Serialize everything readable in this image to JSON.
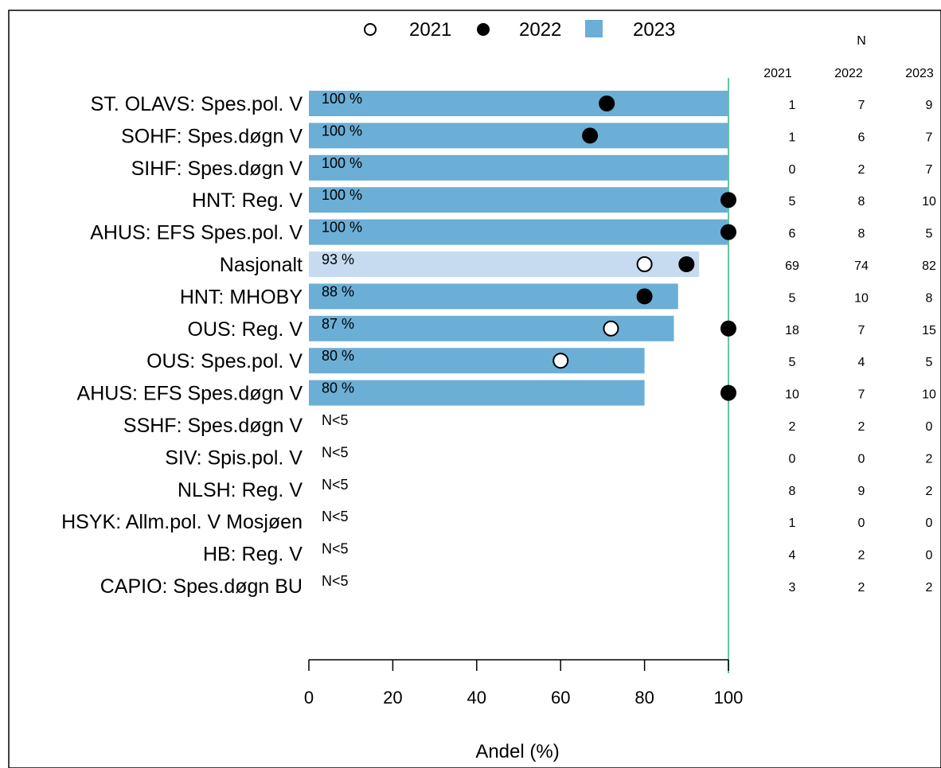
{
  "chart_data": {
    "type": "bar",
    "orientation": "horizontal",
    "xlabel": "Andel (%)",
    "xlim": [
      0,
      100
    ],
    "xticks": [
      0,
      20,
      40,
      60,
      80,
      100
    ],
    "reference_line": 100,
    "legend": {
      "placement": "top",
      "entries": [
        {
          "label": "2021",
          "marker": "open-circle"
        },
        {
          "label": "2022",
          "marker": "filled-circle"
        },
        {
          "label": "2023",
          "marker": "bar"
        }
      ]
    },
    "n_table": {
      "title": "N",
      "columns": [
        "2021",
        "2022",
        "2023"
      ]
    },
    "rows": [
      {
        "label": "ST. OLAVS: Spes.pol. V",
        "value_2023": 100,
        "label_2023": "100 %",
        "value_2022": 71,
        "value_2021": null,
        "n": [
          1,
          7,
          9
        ],
        "highlight": false
      },
      {
        "label": "SOHF: Spes.døgn V",
        "value_2023": 100,
        "label_2023": "100 %",
        "value_2022": 67,
        "value_2021": null,
        "n": [
          1,
          6,
          7
        ],
        "highlight": false
      },
      {
        "label": "SIHF: Spes.døgn V",
        "value_2023": 100,
        "label_2023": "100 %",
        "value_2022": null,
        "value_2021": null,
        "n": [
          0,
          2,
          7
        ],
        "highlight": false
      },
      {
        "label": "HNT: Reg. V",
        "value_2023": 100,
        "label_2023": "100 %",
        "value_2022": 100,
        "value_2021": null,
        "n": [
          5,
          8,
          10
        ],
        "highlight": false
      },
      {
        "label": "AHUS: EFS Spes.pol. V",
        "value_2023": 100,
        "label_2023": "100 %",
        "value_2022": 100,
        "value_2021": null,
        "n": [
          6,
          8,
          5
        ],
        "highlight": false
      },
      {
        "label": "Nasjonalt",
        "value_2023": 93,
        "label_2023": "93 %",
        "value_2022": 90,
        "value_2021": 80,
        "n": [
          69,
          74,
          82
        ],
        "highlight": true
      },
      {
        "label": "HNT: MHOBY",
        "value_2023": 88,
        "label_2023": "88 %",
        "value_2022": 80,
        "value_2021": null,
        "n": [
          5,
          10,
          8
        ],
        "highlight": false
      },
      {
        "label": "OUS: Reg. V",
        "value_2023": 87,
        "label_2023": "87 %",
        "value_2022": 100,
        "value_2021": 72,
        "n": [
          18,
          7,
          15
        ],
        "highlight": false
      },
      {
        "label": "OUS: Spes.pol. V",
        "value_2023": 80,
        "label_2023": "80 %",
        "value_2022": null,
        "value_2021": 60,
        "n": [
          5,
          4,
          5
        ],
        "highlight": false
      },
      {
        "label": "AHUS: EFS Spes.døgn V",
        "value_2023": 80,
        "label_2023": "80 %",
        "value_2022": 100,
        "value_2021": null,
        "n": [
          10,
          7,
          10
        ],
        "highlight": false
      },
      {
        "label": "SSHF: Spes.døgn V",
        "value_2023": null,
        "label_2023": "N<5",
        "value_2022": null,
        "value_2021": null,
        "n": [
          2,
          2,
          0
        ],
        "highlight": false
      },
      {
        "label": "SIV: Spis.pol. V",
        "value_2023": null,
        "label_2023": "N<5",
        "value_2022": null,
        "value_2021": null,
        "n": [
          0,
          0,
          2
        ],
        "highlight": false
      },
      {
        "label": "NLSH: Reg. V",
        "value_2023": null,
        "label_2023": "N<5",
        "value_2022": null,
        "value_2021": null,
        "n": [
          8,
          9,
          2
        ],
        "highlight": false
      },
      {
        "label": "HSYK: Allm.pol. V Mosjøen",
        "value_2023": null,
        "label_2023": "N<5",
        "value_2022": null,
        "value_2021": null,
        "n": [
          1,
          0,
          0
        ],
        "highlight": false
      },
      {
        "label": "HB: Reg. V",
        "value_2023": null,
        "label_2023": "N<5",
        "value_2022": null,
        "value_2021": null,
        "n": [
          4,
          2,
          0
        ],
        "highlight": false
      },
      {
        "label": "CAPIO: Spes.døgn BU",
        "value_2023": null,
        "label_2023": "N<5",
        "value_2022": null,
        "value_2021": null,
        "n": [
          3,
          2,
          2
        ],
        "highlight": false
      }
    ],
    "colors": {
      "bar": "#6baed6",
      "bar_highlight": "#c6dbef",
      "reference_line": "#66c2a4",
      "marker": "#000000"
    }
  }
}
